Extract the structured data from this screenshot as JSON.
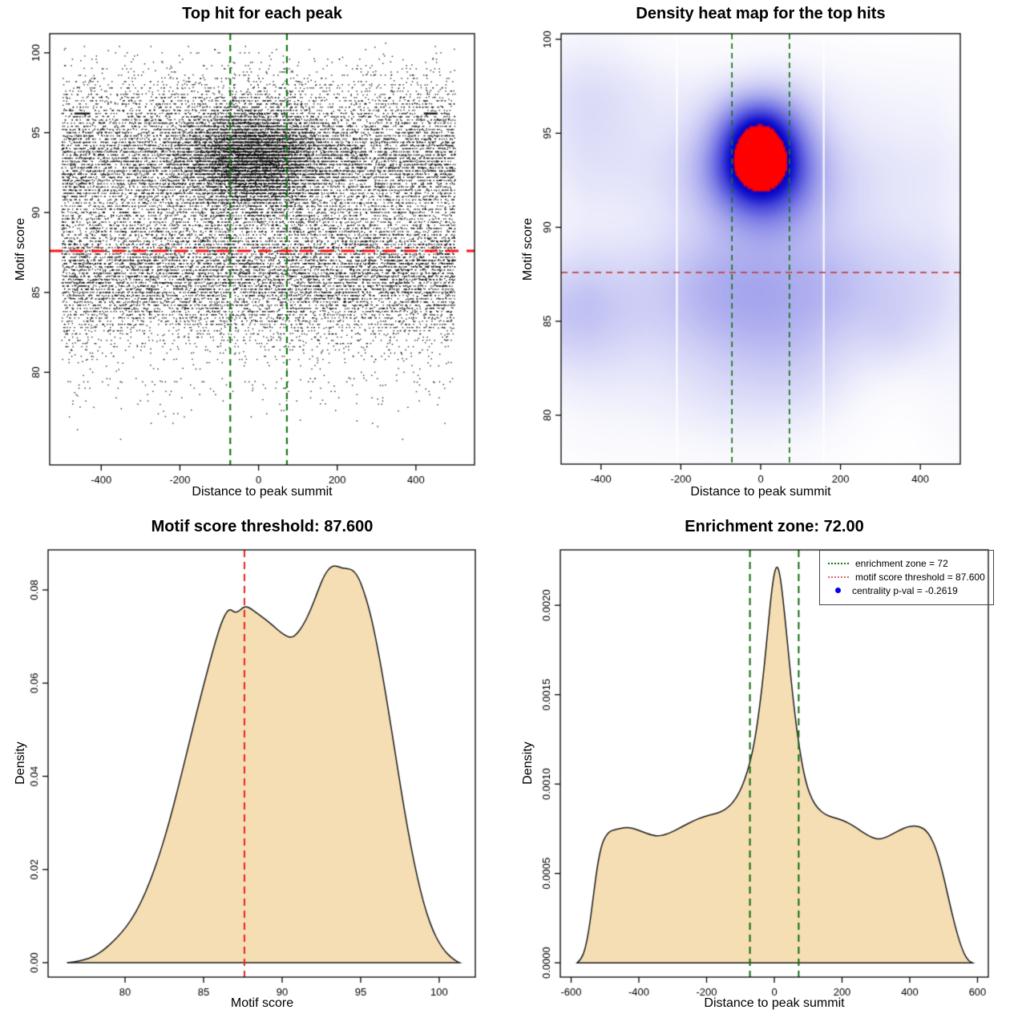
{
  "figure": {
    "background": "#ffffff",
    "accent_green": "#117711",
    "accent_red": "#e62222",
    "fill_wheat": "#f5deb3",
    "point_blue": "#0000ee"
  },
  "chart_data": [
    {
      "id": "top-hits-scatter",
      "type": "scatter",
      "title": "Top hit for each peak",
      "xlabel": "Distance to peak summit",
      "ylabel": "Motif score",
      "xlim": [
        -531,
        549
      ],
      "ylim": [
        74.2,
        101.2
      ],
      "xticks": {
        "values": [
          -400,
          -200,
          0,
          200,
          400
        ],
        "labels": [
          "-400",
          "-200",
          "0",
          "200",
          "400"
        ]
      },
      "yticks": {
        "values": [
          80,
          85,
          90,
          95,
          100
        ],
        "labels": [
          "80",
          "85",
          "90",
          "95",
          "100"
        ]
      },
      "enrichment_zone": 72,
      "motif_score_threshold": 87.6,
      "point_color": "#0a0a0a",
      "vlines": [
        {
          "x": -72,
          "color": "#117711",
          "width": 2.2,
          "dash": [
            8,
            6
          ]
        },
        {
          "x": 72,
          "color": "#117711",
          "width": 2.2,
          "dash": [
            8,
            6
          ]
        }
      ],
      "hlines": [
        {
          "y": 87.6,
          "color": "#ff1111",
          "width": 3,
          "dash": [
            16,
            10
          ]
        }
      ],
      "render_model": {
        "seed": 42,
        "n_background": 20000,
        "n_cluster": 6200,
        "n_low_tail": 130,
        "background_x_range": [
          -500,
          500
        ],
        "score_mixture": [
          {
            "w": 0.52,
            "mean": 86.4,
            "sd": 2.4
          },
          {
            "w": 0.4,
            "mean": 93.2,
            "sd": 1.95
          },
          {
            "w": 0.08,
            "mean": 96.6,
            "sd": 1.6
          }
        ],
        "cluster": {
          "x_mean": -15,
          "x_sd": 82,
          "y_mean": 93.4,
          "y_sd": 1.6
        },
        "quantize_step": 0.2,
        "score_range": [
          75.6,
          100.6
        ],
        "streaks": [
          {
            "x1": -468,
            "x2": -428,
            "y": 96.2
          },
          {
            "x1": 420,
            "x2": 455,
            "y": 96.2
          }
        ]
      }
    },
    {
      "id": "density-heatmap",
      "type": "heatmap",
      "title": "Density heat map for the top hits",
      "xlabel": "Distance to peak summit",
      "ylabel": "Motif score",
      "xlim": [
        -500,
        500
      ],
      "ylim": [
        77.4,
        100.3
      ],
      "xticks": {
        "values": [
          -400,
          -200,
          0,
          200,
          400
        ],
        "labels": [
          "-400",
          "-200",
          "0",
          "200",
          "400"
        ]
      },
      "yticks": {
        "values": [
          80,
          85,
          90,
          95,
          100
        ],
        "labels": [
          "80",
          "85",
          "90",
          "95",
          "100"
        ]
      },
      "enrichment_zone": 72,
      "motif_score_threshold": 87.6,
      "hotspot": {
        "x": -8,
        "y": 93.6
      },
      "white_streaks_x": [
        -210,
        158
      ],
      "vlines": [
        {
          "x": -72,
          "color": "#117711",
          "width": 1.7,
          "dash": [
            7,
            5
          ]
        },
        {
          "x": 72,
          "color": "#117711",
          "width": 1.7,
          "dash": [
            7,
            5
          ]
        }
      ],
      "hlines": [
        {
          "y": 87.6,
          "color": "#c04444",
          "width": 1.7,
          "dash": [
            8,
            6
          ]
        }
      ],
      "colormap": {
        "stops": [
          [
            0.0,
            255,
            255,
            255
          ],
          [
            0.05,
            246,
            246,
            253
          ],
          [
            0.12,
            228,
            228,
            250
          ],
          [
            0.22,
            202,
            202,
            245
          ],
          [
            0.34,
            168,
            168,
            238
          ],
          [
            0.47,
            124,
            124,
            230
          ],
          [
            0.6,
            72,
            72,
            219
          ],
          [
            0.7,
            24,
            24,
            206
          ],
          [
            0.775,
            0,
            0,
            200
          ],
          [
            0.78,
            255,
            0,
            0
          ],
          [
            1.0,
            253,
            0,
            0
          ]
        ]
      },
      "render_model": {
        "seed": 11,
        "base": [
          {
            "w": 0.8,
            "mean": 86.3,
            "sd": 2.5
          },
          {
            "w": 0.55,
            "mean": 93.1,
            "sd": 2.1
          },
          {
            "w": 0.22,
            "mean": 97.2,
            "sd": 1.6
          }
        ],
        "x_wave": {
          "amp": 0.16,
          "period": 140
        },
        "edge_fade": {
          "start": 430,
          "span": 150,
          "floor": 0.3
        },
        "clusters": [
          {
            "a": 3.1,
            "x": -8,
            "sx": 84,
            "y": 93.6,
            "sy": 1.75
          },
          {
            "a": 0.95,
            "x": -8,
            "sx": 70,
            "y": 95.7,
            "sy": 1.15
          },
          {
            "a": 0.55,
            "x": 0,
            "sx": 115,
            "y": 91.2,
            "sy": 1.6
          }
        ],
        "bumps": {
          "n": 26,
          "amp": [
            0.1,
            0.26
          ],
          "sx": [
            55,
            150
          ],
          "sy": [
            1.3,
            3.3
          ],
          "y_low": [
            80.5,
            90.5
          ],
          "y_high": [
            91,
            98
          ],
          "high_frac": 0.35
        }
      }
    },
    {
      "id": "motif-score-density",
      "type": "area",
      "title": "Motif score threshold: 87.600",
      "xlabel": "Motif score",
      "ylabel": "Density",
      "xlim": [
        75.1,
        102.3
      ],
      "ylim": [
        -0.0031,
        0.0886
      ],
      "xticks": {
        "values": [
          80,
          85,
          90,
          95,
          100
        ],
        "labels": [
          "80",
          "85",
          "90",
          "95",
          "100"
        ]
      },
      "yticks": {
        "values": [
          0,
          0.02,
          0.04,
          0.06,
          0.08
        ],
        "labels": [
          "0.00",
          "0.02",
          "0.04",
          "0.06",
          "0.08"
        ]
      },
      "motif_score_threshold": 87.6,
      "fill": "#f5deb3",
      "stroke": "#1a1a1a",
      "vlines": [
        {
          "x": 87.6,
          "color": "#e62222",
          "width": 2,
          "dash": [
            9,
            6
          ]
        }
      ],
      "hlines": [],
      "curve": [
        [
          76.3,
          0.0
        ],
        [
          76.8,
          0.0002
        ],
        [
          77.4,
          0.0006
        ],
        [
          78.0,
          0.0013
        ],
        [
          78.6,
          0.0026
        ],
        [
          79.2,
          0.0044
        ],
        [
          79.8,
          0.0065
        ],
        [
          80.4,
          0.0092
        ],
        [
          81.0,
          0.0128
        ],
        [
          81.6,
          0.0175
        ],
        [
          82.2,
          0.0232
        ],
        [
          82.8,
          0.03
        ],
        [
          83.4,
          0.0378
        ],
        [
          84.0,
          0.046
        ],
        [
          84.6,
          0.0543
        ],
        [
          85.2,
          0.0621
        ],
        [
          85.7,
          0.0683
        ],
        [
          86.1,
          0.0727
        ],
        [
          86.45,
          0.0753
        ],
        [
          86.7,
          0.0759
        ],
        [
          86.95,
          0.0752
        ],
        [
          87.2,
          0.0753
        ],
        [
          87.45,
          0.0761
        ],
        [
          87.7,
          0.0765
        ],
        [
          88.0,
          0.076
        ],
        [
          88.4,
          0.075
        ],
        [
          88.9,
          0.0738
        ],
        [
          89.4,
          0.0724
        ],
        [
          89.9,
          0.0709
        ],
        [
          90.3,
          0.07
        ],
        [
          90.6,
          0.0698
        ],
        [
          90.9,
          0.0704
        ],
        [
          91.3,
          0.0722
        ],
        [
          91.8,
          0.0755
        ],
        [
          92.3,
          0.08
        ],
        [
          92.7,
          0.0833
        ],
        [
          93.1,
          0.085
        ],
        [
          93.45,
          0.0852
        ],
        [
          93.8,
          0.0847
        ],
        [
          94.15,
          0.0846
        ],
        [
          94.5,
          0.0843
        ],
        [
          94.85,
          0.0828
        ],
        [
          95.2,
          0.0798
        ],
        [
          95.6,
          0.0752
        ],
        [
          96.0,
          0.069
        ],
        [
          96.4,
          0.0616
        ],
        [
          96.8,
          0.0535
        ],
        [
          97.2,
          0.045
        ],
        [
          97.6,
          0.0365
        ],
        [
          98.0,
          0.0286
        ],
        [
          98.4,
          0.0215
        ],
        [
          98.8,
          0.0155
        ],
        [
          99.2,
          0.0106
        ],
        [
          99.6,
          0.0069
        ],
        [
          100.0,
          0.0042
        ],
        [
          100.4,
          0.0023
        ],
        [
          100.8,
          0.001
        ],
        [
          101.1,
          0.0003
        ],
        [
          101.3,
          0.0
        ]
      ]
    },
    {
      "id": "summit-distance-density",
      "type": "area",
      "title": "Enrichment zone: 72.00",
      "xlabel": "Distance to peak summit",
      "ylabel": "Density",
      "xlim": [
        -632,
        632
      ],
      "ylim": [
        -8e-05,
        0.00231
      ],
      "xticks": {
        "values": [
          -600,
          -400,
          -200,
          0,
          200,
          400,
          600
        ],
        "labels": [
          "-600",
          "-400",
          "-200",
          "0",
          "200",
          "400",
          "600"
        ]
      },
      "yticks": {
        "values": [
          0,
          0.0005,
          0.001,
          0.0015,
          0.002
        ],
        "labels": [
          "0.0000",
          "0.0005",
          "0.0010",
          "0.0015",
          "0.0020"
        ]
      },
      "enrichment_zone": 72,
      "fill": "#f5deb3",
      "stroke": "#1a1a1a",
      "vlines": [
        {
          "x": -72,
          "color": "#0e6b0e",
          "width": 2,
          "dash": [
            9,
            6
          ]
        },
        {
          "x": 72,
          "color": "#0e6b0e",
          "width": 2,
          "dash": [
            9,
            6
          ]
        }
      ],
      "hlines": [],
      "legend": {
        "items": [
          {
            "label": "enrichment zone = 72",
            "swatch": "dotted-line",
            "color": "#117711"
          },
          {
            "label": "motif score threshold = 87.600",
            "swatch": "dotted-line",
            "color": "#e06666"
          },
          {
            "label": "centrality p-val = -0.2619",
            "swatch": "point",
            "color": "#0000ee"
          }
        ]
      },
      "curve": [
        [
          -582,
          0.0
        ],
        [
          -570,
          2e-05
        ],
        [
          -558,
          8e-05
        ],
        [
          -546,
          0.0002
        ],
        [
          -534,
          0.00038
        ],
        [
          -522,
          0.00055
        ],
        [
          -510,
          0.00066
        ],
        [
          -498,
          0.00071
        ],
        [
          -486,
          0.000735
        ],
        [
          -472,
          0.000745
        ],
        [
          -458,
          0.00075
        ],
        [
          -444,
          0.000755
        ],
        [
          -430,
          0.000757
        ],
        [
          -416,
          0.000752
        ],
        [
          -400,
          0.000741
        ],
        [
          -384,
          0.000729
        ],
        [
          -368,
          0.000718
        ],
        [
          -354,
          0.000711
        ],
        [
          -342,
          0.00071
        ],
        [
          -328,
          0.000714
        ],
        [
          -312,
          0.000724
        ],
        [
          -296,
          0.000738
        ],
        [
          -280,
          0.000754
        ],
        [
          -264,
          0.00077
        ],
        [
          -248,
          0.000785
        ],
        [
          -232,
          0.0008
        ],
        [
          -216,
          0.000812
        ],
        [
          -200,
          0.000822
        ],
        [
          -184,
          0.00083
        ],
        [
          -168,
          0.000838
        ],
        [
          -152,
          0.00085
        ],
        [
          -136,
          0.00087
        ],
        [
          -120,
          0.000902
        ],
        [
          -104,
          0.00095
        ],
        [
          -88,
          0.00102
        ],
        [
          -72,
          0.001118
        ],
        [
          -58,
          0.00124
        ],
        [
          -44,
          0.00142
        ],
        [
          -30,
          0.00165
        ],
        [
          -18,
          0.00189
        ],
        [
          -8,
          0.00208
        ],
        [
          0,
          0.00218
        ],
        [
          6,
          0.002215
        ],
        [
          12,
          0.00221
        ],
        [
          20,
          0.00213
        ],
        [
          30,
          0.00196
        ],
        [
          42,
          0.00173
        ],
        [
          54,
          0.0015
        ],
        [
          68,
          0.00128
        ],
        [
          82,
          0.00111
        ],
        [
          96,
          0.00099
        ],
        [
          112,
          0.00091
        ],
        [
          130,
          0.00086
        ],
        [
          150,
          0.00083
        ],
        [
          170,
          0.000815
        ],
        [
          190,
          0.000805
        ],
        [
          210,
          0.00079
        ],
        [
          230,
          0.00077
        ],
        [
          250,
          0.000745
        ],
        [
          270,
          0.00072
        ],
        [
          290,
          0.0007
        ],
        [
          306,
          0.000692
        ],
        [
          322,
          0.000696
        ],
        [
          338,
          0.00071
        ],
        [
          356,
          0.000728
        ],
        [
          374,
          0.000746
        ],
        [
          392,
          0.00076
        ],
        [
          410,
          0.000766
        ],
        [
          428,
          0.000763
        ],
        [
          446,
          0.000745
        ],
        [
          462,
          0.000705
        ],
        [
          478,
          0.000635
        ],
        [
          494,
          0.00053
        ],
        [
          510,
          0.0004
        ],
        [
          526,
          0.000265
        ],
        [
          542,
          0.00015
        ],
        [
          556,
          7e-05
        ],
        [
          568,
          2.5e-05
        ],
        [
          578,
          6e-06
        ],
        [
          585,
          0.0
        ]
      ]
    }
  ]
}
